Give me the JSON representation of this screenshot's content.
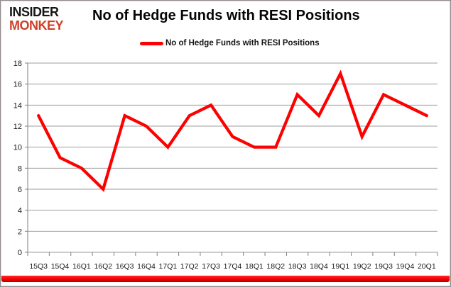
{
  "logo": {
    "line1": "INSIDER",
    "line2": "MONKEY"
  },
  "header": {
    "title": "No of Hedge Funds with RESI Positions"
  },
  "legend": {
    "label": "No of Hedge Funds with RESI Positions"
  },
  "colors": {
    "line": "#fe0000",
    "logo_red": "#cd4127",
    "grid": "#9d9d9d",
    "axis": "#7f7f7f",
    "bottom_bar": "#fe0000",
    "text": "#1a1a1a"
  },
  "chart_data": {
    "type": "line",
    "title": "No of Hedge Funds with RESI Positions",
    "categories": [
      "15Q3",
      "15Q4",
      "16Q1",
      "16Q2",
      "16Q3",
      "16Q4",
      "17Q1",
      "17Q2",
      "17Q3",
      "17Q4",
      "18Q1",
      "18Q2",
      "18Q3",
      "18Q4",
      "19Q1",
      "19Q2",
      "19Q3",
      "19Q4",
      "20Q1"
    ],
    "series": [
      {
        "name": "No of Hedge Funds with RESI Positions",
        "values": [
          13,
          9,
          8,
          6,
          13,
          12,
          10,
          13,
          14,
          11,
          10,
          10,
          15,
          13,
          17,
          11,
          15,
          14,
          13
        ]
      }
    ],
    "xlabel": "",
    "ylabel": "",
    "ylim": [
      0,
      18
    ],
    "yticks": [
      0,
      2,
      4,
      6,
      8,
      10,
      12,
      14,
      16,
      18
    ],
    "grid": true,
    "legend_position": "top",
    "line_color": "#fe0000"
  }
}
